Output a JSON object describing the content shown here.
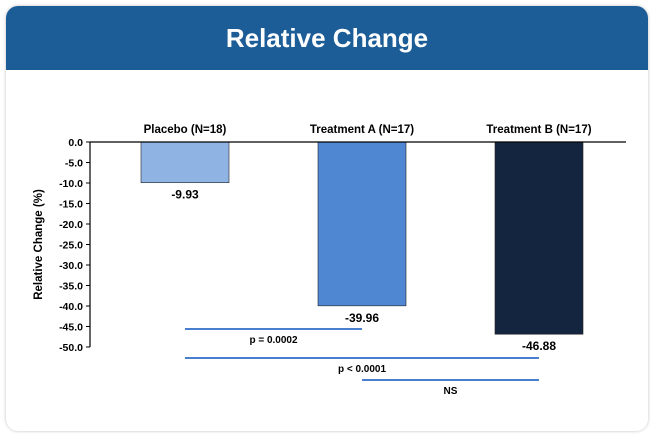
{
  "header": {
    "title": "Relative Change"
  },
  "chart_data": {
    "type": "bar",
    "title": "Relative Change",
    "categories": [
      "Placebo (N=18)",
      "Treatment A (N=17)",
      "Treatment B (N=17)"
    ],
    "values": [
      -9.93,
      -39.96,
      -46.88
    ],
    "value_labels": [
      "-9.93",
      "-39.96",
      "-46.88"
    ],
    "colors": [
      "#8fb4e3",
      "#4f87d3",
      "#14253f"
    ],
    "ylabel": "Relative Change (%)",
    "xlabel": "",
    "ylim": [
      -50.0,
      0.0
    ],
    "yticks": [
      0.0,
      -5.0,
      -10.0,
      -15.0,
      -20.0,
      -25.0,
      -30.0,
      -35.0,
      -40.0,
      -45.0,
      -50.0
    ],
    "ytick_labels": [
      "0.0",
      "-5.0",
      "-10.0",
      "-15.0",
      "-20.0",
      "-25.0",
      "-30.0",
      "-35.0",
      "-40.0",
      "-45.0",
      "-50.0"
    ],
    "grid": false,
    "annotations": [
      {
        "from": 0,
        "to": 1,
        "text": "p = 0.0002"
      },
      {
        "from": 0,
        "to": 2,
        "text": "p < 0.0001"
      },
      {
        "from": 1,
        "to": 2,
        "text": "NS"
      }
    ],
    "accent_color": "#1c5d97",
    "bracket_color": "#4a7fd0"
  }
}
